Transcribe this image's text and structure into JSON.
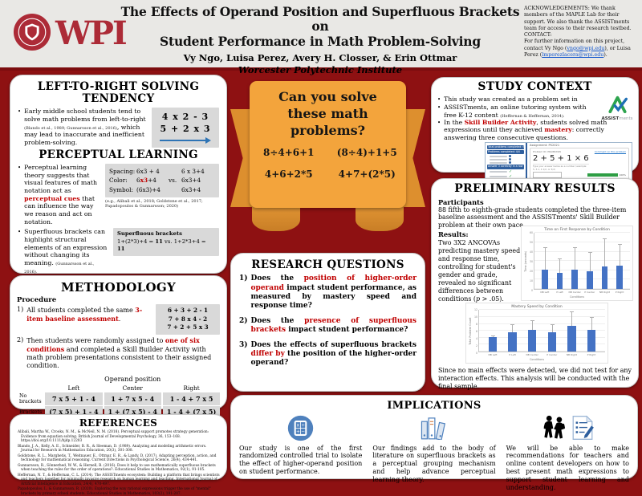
{
  "colors": {
    "accent_red": "#c00000",
    "poster_bg": "#8e1112",
    "ribbon_orange": "#f3a43c",
    "bar_blue": "#4472c4",
    "wpi_crimson": "#ac2b37"
  },
  "header": {
    "logo_text": "WPI",
    "title_line1": "The Effects of Operand Position and Superfluous Brackets on",
    "title_line2": "Student Performance in Math Problem-Solving",
    "authors": "Vy Ngo, Luisa Perez, Avery H. Closser, & Erin Ottmar",
    "institute": "Worcester Polytechnic Institute",
    "ack": "ACKNOWLEDGEMENTS: We thank members of the MAPLE Lab for their support. We also thank the ASSISTments team for access to their research testbed.",
    "contact_label": "CONTACT:",
    "contact_pre": "For further information on this project, contact Vy Ngo (",
    "contact_link1": "vngo@wpi.edu",
    "contact_mid": "), or Luisa Perez (",
    "contact_link2": "lmperezlacera@wpi.edu",
    "contact_post": ")."
  },
  "tendency": {
    "title": "LEFT-TO-RIGHT SOLVING TENDENCY",
    "b1_pre": "Early middle school students tend to solve math problems from left-to-right ",
    "b1_cite": "(Blando et al., 1989; Gunnarsson et al., 2016)",
    "b1_post": ", which may lead to inaccurate and inefficient problem-solving.",
    "ex1": "4 x 2 - 3",
    "ex2": "5 + 2 x 3"
  },
  "perceptual": {
    "title": "PERCEPTUAL LEARNING",
    "b1_pre": "Perceptual learning theory suggests that visual features of math notation act as ",
    "b1_red": "perceptual cues",
    "b1_post": " that can influence the way we reason and act on notation.",
    "spacing_label": "Spacing:",
    "spacing_left": "6x3 + 4",
    "spacing_right": "6 x 3+4",
    "color_label": "Color:",
    "color_left_pre": "6",
    "color_left_red": "x3",
    "color_left_post": "+4",
    "vs": "vs.",
    "color_right": "6x3+4",
    "symbol_label": "Symbol:",
    "symbol_left": "(6x3)+4",
    "symbol_right": "6x3+4",
    "cite": "(e.g., Alibali et al., 2018; Goldstone et al., 2017; Papadopoulos & Gunnarsson; 2020)",
    "b2": "Superfluous brackets can highlight structural elements of an expression without changing its meaning. ",
    "b2_cite": "(Gunnarsson et al., 2016).",
    "sb_title": "Superfluous brackets",
    "sb_e1": "1+(2*3)+4 = ",
    "sb_v1": "11",
    "sb_vs": " vs. ",
    "sb_e2": "1+2*3+4 = ",
    "sb_v2": "11",
    "b3_red": "Superfluous brackets can serve as perceptual cues to improve student math performance",
    "b3_post": " by directing their attention to the important elements within math expressions."
  },
  "methodology": {
    "title": "METHODOLOGY",
    "procedure_label": "Procedure",
    "s1_num": "1)",
    "s1_pre": "All students completed the same ",
    "s1_red": "3-item baseline assessment",
    "s1_post": ".",
    "baseline": [
      "6 + 3 + 2 - 1",
      "7 + 8 x 4 - 2",
      "7 + 2 + 5 x 3"
    ],
    "s2_num": "2)",
    "s2_pre": "Then students were randomly assigned to ",
    "s2_red": "one of six conditions",
    "s2_post": " and completed a Skill Builder Activity with math problem presentations consistent to their assigned condition.",
    "table": {
      "title": "Operand position",
      "cols": [
        "Left",
        "Center",
        "Right"
      ],
      "rows": [
        {
          "label": "No brackets",
          "cells": [
            "7 x 5 + 1 - 4",
            "1 + 7 x 5 - 4",
            "1 - 4 + 7 x 5"
          ]
        },
        {
          "label": "Brackets",
          "cells": [
            "(7 x 5) + 1 - 4",
            "1 + (7 x 5) - 4",
            "1 - 4 + (7 x 5)"
          ]
        }
      ]
    }
  },
  "ribbon": {
    "line1": "Can you solve",
    "line2": "these math",
    "line3": "problems?",
    "ex1": "8÷4+6+1",
    "ex2": "(8÷4)+1+5",
    "ex3": "4+6+2*5",
    "ex4": "4+7+(2*5)"
  },
  "research_questions": {
    "title": "RESEARCH QUESTIONS",
    "q1_num": "1)",
    "q1_pre": "Does the ",
    "q1_red": "position of higher-order operand",
    "q1_post": " impact student performance, as measured by mastery speed and response time?",
    "q2_num": "2)",
    "q2_pre": "Does the ",
    "q2_red": "presence of superfluous brackets",
    "q2_post": " impact student performance?",
    "q3_num": "3)",
    "q3_pre": "Does the effects of superfluous brackets ",
    "q3_red": "differ by",
    "q3_post": " the position of the higher-order operand?"
  },
  "study_context": {
    "title": "STUDY CONTEXT",
    "b1": "This study was created as a problem set in",
    "b2_pre": "ASSISTments, an online tutoring system with free K-12 content ",
    "b2_cite": "(Heffernan & Heffernan, 2014).",
    "b3_pre": "In the ",
    "b3_red": "Skill Builder Activity",
    "b3_mid": ", students solved math expressions until they achieved ",
    "b3_red2": "mastery",
    "b3_post": ": correctly answering three consecutive questions.",
    "brand_bold": "ASSIST",
    "brand_light": "ments",
    "screenshot": {
      "bar1": "Total problems completed: 6",
      "bar2": "Problems completed: 4/4",
      "bar3": "Answer 3 correctly in a row",
      "assignment": "Assignment: PS2021",
      "problem_id": "Problem ID: PRA8RX9W",
      "comment_link": "Comment on this problem",
      "expression": "2 + 5 + 1 × 6",
      "hint": "Type your answer below as a number (example: 5, 3.1, 4 1/2, or 3/2)",
      "submit": "Submit answer",
      "show": "Show answer",
      "pct": "100%"
    }
  },
  "results": {
    "title": "PRELIMINARY RESULTS",
    "participants_label": "Participants",
    "participants_text": "88 fifth to eighth-grade students completed the three-item baseline assessment and the ASSISTments' Skill Builder problem at their own pace.",
    "results_label": "Results:",
    "results_pre": "Two 3X2 ANCOVAs predicting mastery speed and response time, controlling for student's gender and grade, revealed no significant differences between conditions (",
    "results_p": "p",
    "results_post": " > .05).",
    "note": "Since no main effects were detected, we did not test for any interaction effects. This analysis will be conducted with the final sample."
  },
  "implications": {
    "title": "IMPLICATIONS",
    "col1": "Our study is one of the first randomized controlled trial to isolate the effect of higher-operand position on student performance.",
    "col2": "Our findings add to the body of literature on superfluous brackets as a perceptual grouping mechanism and help advance perceptual learning theory.",
    "col3": "We will be able to make recommendations for teachers and online content developers on how to best present math expressions to support student learning and understanding."
  },
  "references": {
    "title": "REFERENCES",
    "items": [
      "Alibali, Martha W., Crooks, N. M., & McNeil, N. M. (2018). Perceptual support promotes strategy generation: Evidence from equation solving. British Journal of Developmental Psychology, 36, 153–168. https://doi.org/10.1111/bjdp.12203",
      "Blando, J. A., Kelly, A. E., Schneider, B. R., & Sleeman, D. (1989). Analyzing and modeling arithmetic errors. Journal for Research in Mathematics Education, 20(3), 301-308.",
      "Goldstone, R. L., Marghetis, T., Weitnauer, E., Ottmar, E. R., & Landy, D. (2017). Adapting perception, action, and technology for mathematical reasoning. Current Directions in Psychological Science, 26(4), 434-441.",
      "Gunnarsson, R., Sönnerhed, W. W., & Hernell, B. (2016). Does it help to use mathematically superfluous brackets when teaching the rules for the order of operations?. Educational Studies in Mathematics, 92(1), 91-105.",
      "Heffernan, N. T., & Heffernan, C. L. (2014). The ASSISTments ecosystem: Building a platform that brings scientists and teachers together for minimally invasive research on human learning and teaching. International Journal of Artificial Intelligence in Education, 24(4), 470-497.",
      "Papadopoulos, I., & Gunnarsson, R. (2020). Exploring the way rational expressions trigger the use of \"mental\" brackets by primary school students. Educational Studies in Mathematics, 103(2), 191-207."
    ]
  },
  "chart_data": [
    {
      "type": "bar",
      "title": "Time on First Response by Condition",
      "xlabel": "Conditions",
      "ylabel": "Time (seconds)",
      "categories": [
        "NB Left",
        "P Left",
        "NB Center",
        "P Center",
        "NB Right",
        "P Right"
      ],
      "values": [
        21,
        17,
        21,
        19,
        24,
        25
      ],
      "errors_high": [
        45,
        33,
        45,
        40,
        54,
        48
      ],
      "ylim": [
        0,
        60
      ],
      "yticks": [
        0,
        10,
        20,
        30,
        40,
        50,
        60
      ],
      "grid": true,
      "bar_color": "#4472c4"
    },
    {
      "type": "bar",
      "title": "Mastery Speed by Condition",
      "xlabel": "Conditions",
      "ylabel": "Total Problem Count",
      "categories": [
        "NB Left",
        "P Left",
        "NB Center",
        "P Center",
        "NB Right",
        "P Right"
      ],
      "values": [
        4.2,
        5.5,
        6.3,
        5.5,
        7.5,
        6.2
      ],
      "errors_high": [
        4.6,
        8,
        9,
        8,
        11.7,
        10
      ],
      "ylim": [
        0,
        12
      ],
      "yticks": [
        0,
        2,
        4,
        6,
        8,
        10,
        12
      ],
      "grid": true,
      "bar_color": "#4472c4"
    }
  ]
}
